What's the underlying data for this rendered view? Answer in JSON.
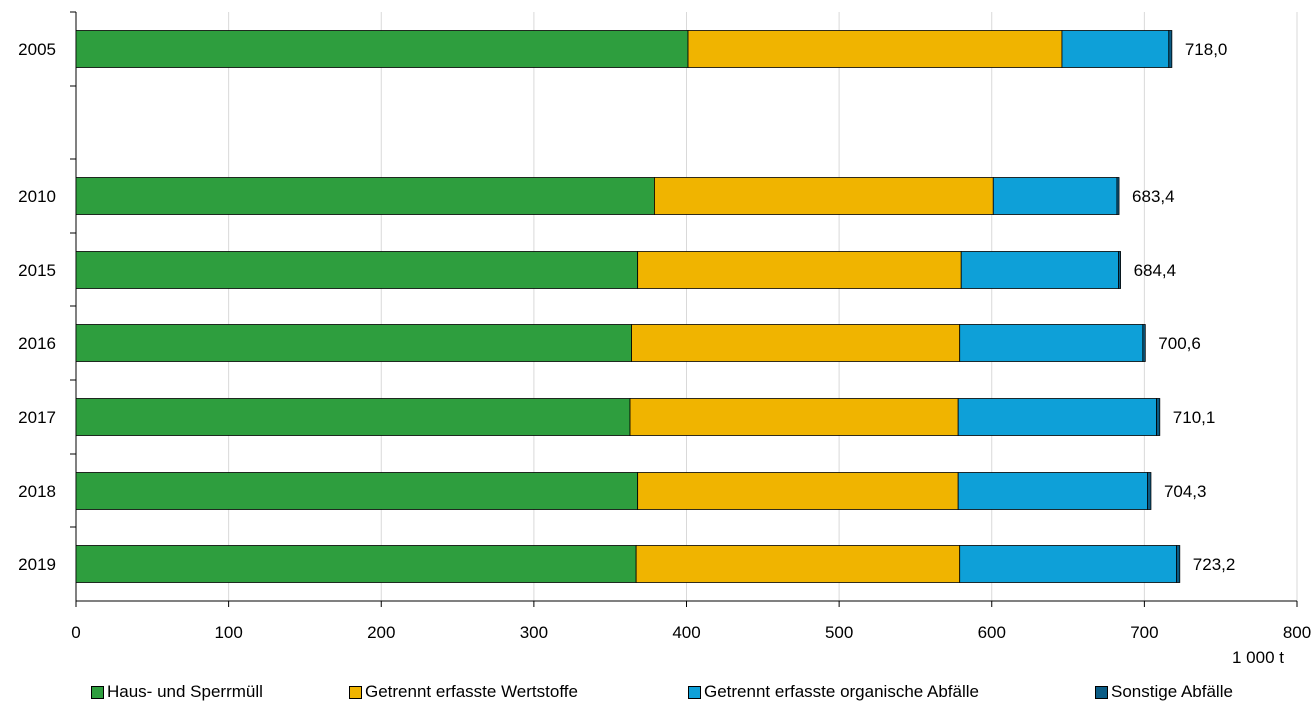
{
  "chart_data": {
    "type": "bar",
    "orientation": "horizontal",
    "stacked": true,
    "categories": [
      "2005",
      "2010",
      "2015",
      "2016",
      "2017",
      "2018",
      "2019"
    ],
    "series": [
      {
        "name": "Haus- und Sperrmüll",
        "color": "#2e9e3e",
        "values": [
          401,
          379,
          368,
          364,
          363,
          368,
          367
        ]
      },
      {
        "name": "Getrennt erfasste Wertstoffe",
        "color": "#f0b400",
        "values": [
          245,
          222,
          212,
          215,
          215,
          210,
          212
        ]
      },
      {
        "name": "Getrennt erfasste organische Abfälle",
        "color": "#0ea0d8",
        "values": [
          70,
          81,
          103,
          120,
          130,
          124,
          142
        ]
      },
      {
        "name": "Sonstige Abfälle",
        "color": "#0b5c85",
        "values": [
          2.0,
          1.4,
          1.4,
          1.6,
          2.1,
          2.3,
          2.2
        ]
      }
    ],
    "totals": [
      "718,0",
      "683,4",
      "684,4",
      "700,6",
      "710,1",
      "704,3",
      "723,2"
    ],
    "xlim": [
      0,
      800
    ],
    "xticks": [
      "0",
      "100",
      "200",
      "300",
      "400",
      "500",
      "600",
      "700",
      "800"
    ],
    "unit_label": "1 000 t",
    "grid": "vertical",
    "legend_position": "bottom"
  }
}
